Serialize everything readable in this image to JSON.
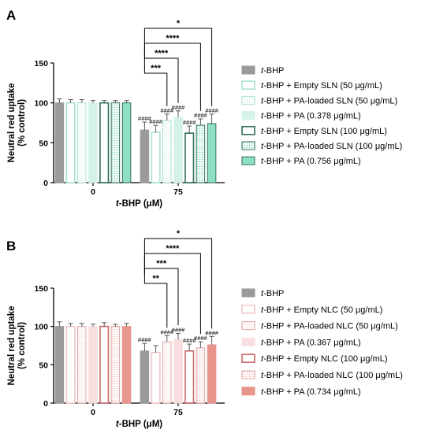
{
  "chart_data": [
    {
      "panel": "A",
      "type": "bar",
      "xlabel": "t-BHP (μM)",
      "ylabel": "Neutral red uptake",
      "ylabel2": "(% control)",
      "ylim": [
        0,
        150
      ],
      "yticks": [
        0,
        50,
        100,
        150
      ],
      "categories": [
        "0",
        "75"
      ],
      "legend_placement": "right",
      "series": [
        {
          "name": "t-BHP",
          "values": [
            100,
            66
          ],
          "errors": [
            5,
            10
          ],
          "fill": "#9a9a9a",
          "stroke": "#9a9a9a",
          "pattern": "solid",
          "hash": [
            "",
            "####"
          ]
        },
        {
          "name": "t-BHP + Empty SLN (50 μg/mL)",
          "values": [
            100,
            63
          ],
          "errors": [
            4,
            9
          ],
          "fill": "#ffffff",
          "stroke": "#a9e3cf",
          "pattern": "outline",
          "hash": [
            "",
            "####"
          ]
        },
        {
          "name": "t-BHP + PA-loaded SLN (50 μg/mL)",
          "values": [
            100,
            78
          ],
          "errors": [
            4,
            8
          ],
          "fill": "#d9f3ea",
          "stroke": "#a9e3cf",
          "pattern": "dots",
          "hash": [
            "",
            "####"
          ]
        },
        {
          "name": "t-BHP + PA (0.378 μg/mL)",
          "values": [
            100,
            82
          ],
          "errors": [
            3,
            8
          ],
          "fill": "#d4f2e8",
          "stroke": "#d4f2e8",
          "pattern": "solid",
          "hash": [
            "",
            "####"
          ]
        },
        {
          "name": "t-BHP + Empty SLN (100 μg/mL)",
          "values": [
            100,
            62
          ],
          "errors": [
            3,
            9
          ],
          "fill": "#ffffff",
          "stroke": "#2f6f5a",
          "pattern": "outline",
          "hash": [
            "",
            "####"
          ]
        },
        {
          "name": "t-BHP + PA-loaded SLN (100 μg/mL)",
          "values": [
            100,
            72
          ],
          "errors": [
            3,
            8
          ],
          "fill": "#7bd6b5",
          "stroke": "#2f6f5a",
          "pattern": "dots",
          "hash": [
            "",
            "####"
          ]
        },
        {
          "name": "t-BHP + PA (0.756 μg/mL)",
          "values": [
            100,
            74
          ],
          "errors": [
            3,
            12
          ],
          "fill": "#8fe0c2",
          "stroke": "#2f6f5a",
          "pattern": "solid",
          "hash": [
            "",
            "####"
          ]
        }
      ],
      "significance": [
        {
          "from": 0,
          "to": 6,
          "label": "*"
        },
        {
          "from": 0,
          "to": 5,
          "label": "****"
        },
        {
          "from": 0,
          "to": 3,
          "label": "****"
        },
        {
          "from": 0,
          "to": 2,
          "label": "***"
        }
      ]
    },
    {
      "panel": "B",
      "type": "bar",
      "xlabel": "t-BHP (μM)",
      "ylabel": "Neutral red uptake",
      "ylabel2": "(% control)",
      "ylim": [
        0,
        150
      ],
      "yticks": [
        0,
        50,
        100,
        150
      ],
      "categories": [
        "0",
        "75"
      ],
      "legend_placement": "right",
      "series": [
        {
          "name": "t-BHP",
          "values": [
            100,
            68
          ],
          "errors": [
            6,
            10
          ],
          "fill": "#9a9a9a",
          "stroke": "#9a9a9a",
          "pattern": "solid",
          "hash": [
            "",
            "####"
          ]
        },
        {
          "name": "t-BHP + Empty NLC (50 μg/mL)",
          "values": [
            100,
            66
          ],
          "errors": [
            4,
            9
          ],
          "fill": "#ffffff",
          "stroke": "#f2c7c7",
          "pattern": "outline",
          "hash": [
            "",
            ""
          ]
        },
        {
          "name": "t-BHP + PA-loaded NLC (50 μg/mL)",
          "values": [
            100,
            80
          ],
          "errors": [
            4,
            8
          ],
          "fill": "#f6d8d8",
          "stroke": "#e0a6a6",
          "pattern": "dots",
          "hash": [
            "",
            "####"
          ]
        },
        {
          "name": "t-BHP + PA (0.367 μg/mL)",
          "values": [
            100,
            83
          ],
          "errors": [
            3,
            8
          ],
          "fill": "#f8dede",
          "stroke": "#f8dede",
          "pattern": "solid",
          "hash": [
            "",
            "####"
          ]
        },
        {
          "name": "t-BHP + Empty NLC (100 μg/mL)",
          "values": [
            100,
            68
          ],
          "errors": [
            5,
            9
          ],
          "fill": "#ffffff",
          "stroke": "#c96a6a",
          "pattern": "outline",
          "hash": [
            "",
            "####"
          ]
        },
        {
          "name": "t-BHP + PA-loaded NLC (100 μg/mL)",
          "values": [
            100,
            72
          ],
          "errors": [
            3,
            8
          ],
          "fill": "#f2c4bf",
          "stroke": "#e0a6a6",
          "pattern": "dots",
          "hash": [
            "",
            "####"
          ]
        },
        {
          "name": "t-BHP + PA (0.734 μg/mL)",
          "values": [
            100,
            76
          ],
          "errors": [
            4,
            11
          ],
          "fill": "#e8958c",
          "stroke": "#e8958c",
          "pattern": "solid",
          "hash": [
            "",
            "####"
          ]
        }
      ],
      "significance": [
        {
          "from": 0,
          "to": 6,
          "label": "*"
        },
        {
          "from": 0,
          "to": 5,
          "label": "****"
        },
        {
          "from": 0,
          "to": 3,
          "label": "***"
        },
        {
          "from": 0,
          "to": 2,
          "label": "**"
        }
      ]
    }
  ]
}
